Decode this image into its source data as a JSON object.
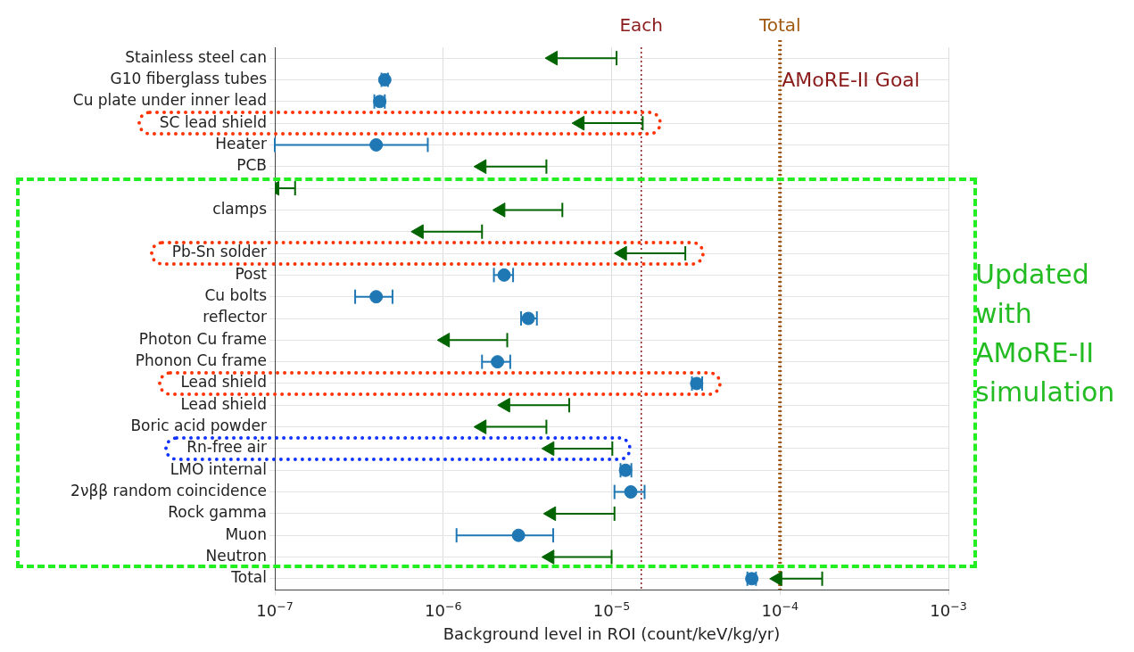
{
  "chart_data": {
    "type": "scatter",
    "orientation": "horizontal",
    "log": "x",
    "grid": true,
    "legend": false,
    "xlabel": "Background level in ROI (count/keV/kg/yr)",
    "categories": [
      "Stainless steel can",
      "G10 fiberglass tubes",
      "Cu plate under inner lead",
      "SC lead shield",
      "Heater",
      "PCB",
      null,
      "clamps",
      null,
      "Pb-Sn solder",
      "Post",
      "Cu bolts",
      "reflector",
      "Photon Cu frame",
      "Phonon Cu frame",
      "Lead shield",
      "Lead shield",
      "Boric acid powder",
      "Rn-free air",
      "LMO internal",
      "2νββ random coincidence",
      "Rock gamma",
      "Muon",
      "Neutron",
      "Total"
    ],
    "xlim": [
      1e-07,
      0.001
    ],
    "xticks": [
      {
        "value": 1e-07,
        "label": "10$^{−7}$"
      },
      {
        "value": 1e-06,
        "label": "10$^{−6}$"
      },
      {
        "value": 1e-05,
        "label": "10$^{−5}$"
      },
      {
        "value": 0.0001,
        "label": "10$^{−4}$"
      },
      {
        "value": 0.001,
        "label": "10$^{−3}$"
      }
    ],
    "series": [
      {
        "marker": "circle",
        "color": "#1f77b4",
        "values": [
          null,
          4.5e-07,
          4.2e-07,
          null,
          4e-07,
          null,
          null,
          null,
          null,
          null,
          2.3e-06,
          4e-07,
          3.2e-06,
          null,
          2.1e-06,
          3.2e-05,
          null,
          null,
          null,
          1.21e-05,
          1.3e-05,
          null,
          2.8e-06,
          null,
          6.8e-05
        ],
        "errors": [
          null,
          [
            4.3e-07,
            4.7e-07
          ],
          [
            3.9e-07,
            4.5e-07
          ],
          null,
          [
            1e-07,
            8.1e-07
          ],
          null,
          null,
          null,
          null,
          null,
          [
            2e-06,
            2.6e-06
          ],
          [
            3e-07,
            5e-07
          ],
          [
            2.9e-06,
            3.6e-06
          ],
          null,
          [
            1.7e-06,
            2.5e-06
          ],
          [
            3e-05,
            3.45e-05
          ],
          null,
          null,
          null,
          [
            1.13e-05,
            1.31e-05
          ],
          [
            1.04e-05,
            1.57e-05
          ],
          null,
          [
            1.2e-06,
            4.5e-06
          ],
          null,
          [
            6.4e-05,
            7.2e-05
          ]
        ]
      },
      {
        "marker": "triangle",
        "color": "#006400",
        "values": [
          4.5e-06,
          null,
          null,
          6.5e-06,
          null,
          1.7e-06,
          1e-07,
          2.2e-06,
          7.2e-07,
          1.16e-05,
          null,
          null,
          null,
          1.03e-06,
          null,
          null,
          2.35e-06,
          1.7e-06,
          4.3e-06,
          null,
          null,
          4.4e-06,
          null,
          4.3e-06,
          9.7e-05
        ],
        "errors": [
          [
            4.5e-06,
            1.07e-05
          ],
          null,
          null,
          [
            6.5e-06,
            1.53e-05
          ],
          null,
          [
            1.7e-06,
            4.1e-06
          ],
          [
            1e-07,
            1.32e-07
          ],
          [
            2.2e-06,
            5.1e-06
          ],
          [
            7.2e-07,
            1.7e-06
          ],
          [
            1.16e-05,
            2.74e-05
          ],
          null,
          null,
          null,
          [
            1.03e-06,
            2.4e-06
          ],
          null,
          null,
          [
            2.35e-06,
            5.6e-06
          ],
          [
            1.7e-06,
            4.1e-06
          ],
          [
            4.3e-06,
            1.01e-05
          ],
          null,
          null,
          [
            4.4e-06,
            1.04e-05
          ],
          null,
          [
            4.3e-06,
            1e-05
          ],
          [
            9.7e-05,
            0.000178
          ]
        ]
      }
    ],
    "ref_lines": [
      {
        "axis": "x",
        "value": 1.5e-05,
        "label": "Each",
        "color": "#8b1a1a",
        "line_style": "dotted"
      },
      {
        "axis": "x",
        "value": 0.0001,
        "label": "Total",
        "color": "#a0570f",
        "line_style": "dotted"
      }
    ],
    "annotations": [
      "AMoRE-II Goal",
      "Updated with AMoRE-II simulation"
    ]
  }
}
